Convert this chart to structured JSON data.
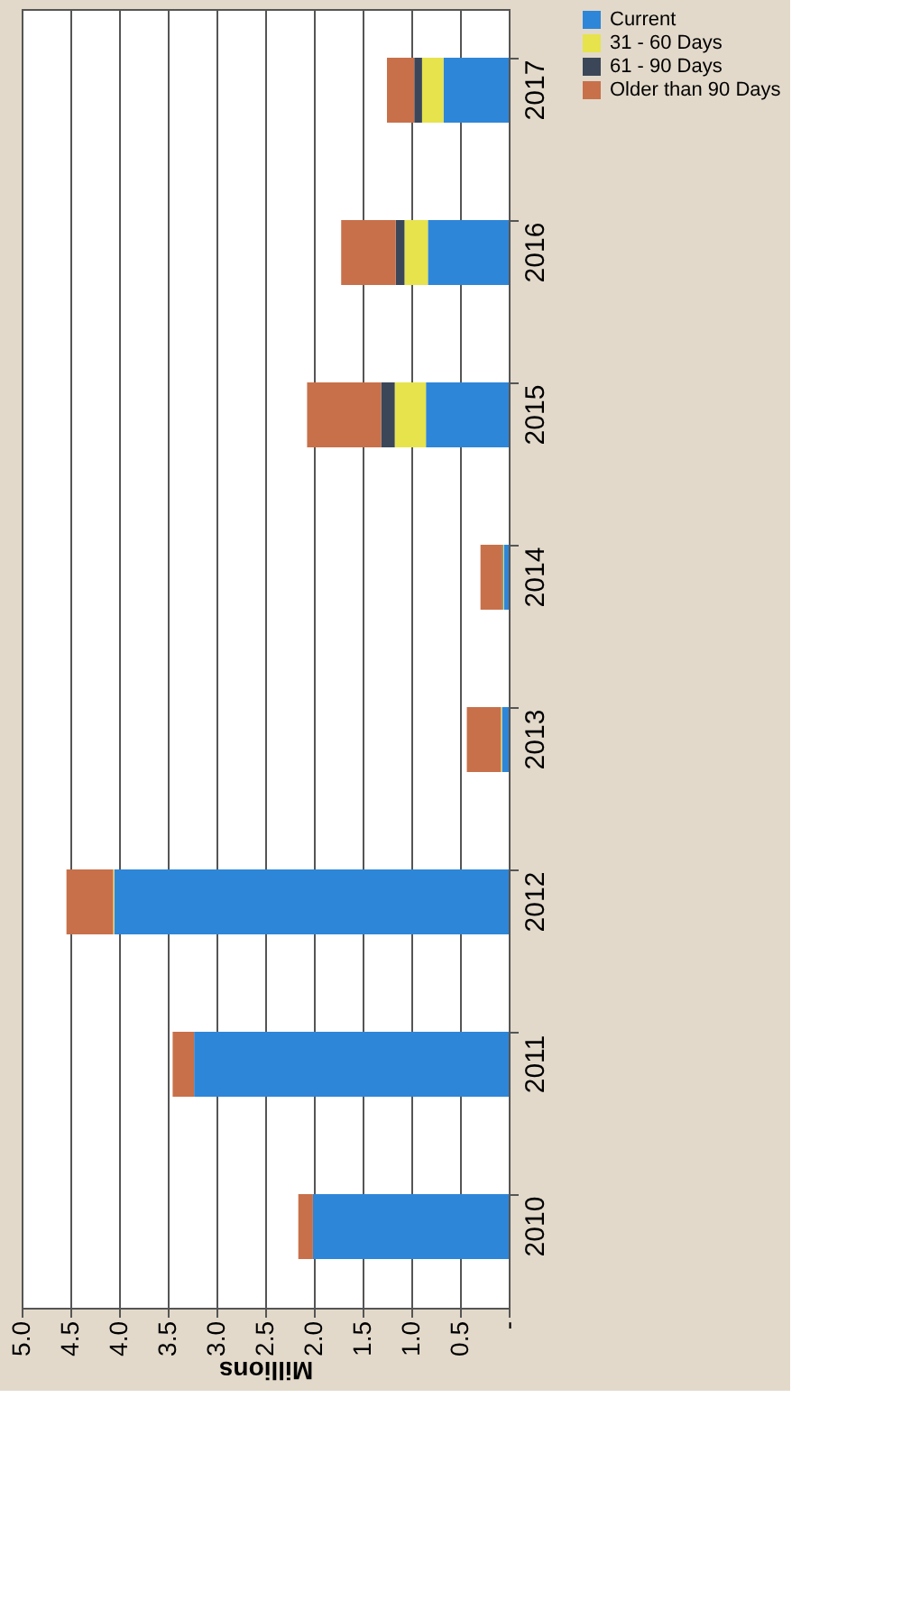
{
  "chart_data": {
    "type": "bar",
    "orientation": "horizontal",
    "stacked": true,
    "categories": [
      "2017",
      "2016",
      "2015",
      "2014",
      "2013",
      "2012",
      "2011",
      "2010"
    ],
    "series": [
      {
        "name": "Current",
        "color": "#2e86d8",
        "values": [
          0.67,
          0.83,
          0.85,
          0.05,
          0.07,
          4.05,
          3.23,
          2.01
        ]
      },
      {
        "name": "31 - 60 Days",
        "color": "#e6e34c",
        "values": [
          0.22,
          0.24,
          0.32,
          0.01,
          0.01,
          0.01,
          null,
          null
        ]
      },
      {
        "name": "61 - 90 Days",
        "color": "#3b4658",
        "values": [
          0.08,
          0.09,
          0.14,
          0.01,
          null,
          null,
          null,
          null
        ]
      },
      {
        "name": "Older than 90 Days",
        "color": "#c8704a",
        "values": [
          0.28,
          0.56,
          0.76,
          0.22,
          0.35,
          0.48,
          0.22,
          0.15
        ]
      }
    ],
    "xlabel": "Millions",
    "xlim": [
      5.0,
      0
    ],
    "xticks": [
      {
        "value": 5.0,
        "label": "5.0"
      },
      {
        "value": 4.5,
        "label": "4.5"
      },
      {
        "value": 4.0,
        "label": "4.0"
      },
      {
        "value": 3.5,
        "label": "3.5"
      },
      {
        "value": 3.0,
        "label": "3.0"
      },
      {
        "value": 2.5,
        "label": "2.5"
      },
      {
        "value": 2.0,
        "label": "2.0"
      },
      {
        "value": 1.5,
        "label": "1.5"
      },
      {
        "value": 1.0,
        "label": "1.0"
      },
      {
        "value": 0.5,
        "label": "0.5"
      },
      {
        "value": 0,
        "label": "-"
      }
    ],
    "grid": "x",
    "legend": "right"
  }
}
